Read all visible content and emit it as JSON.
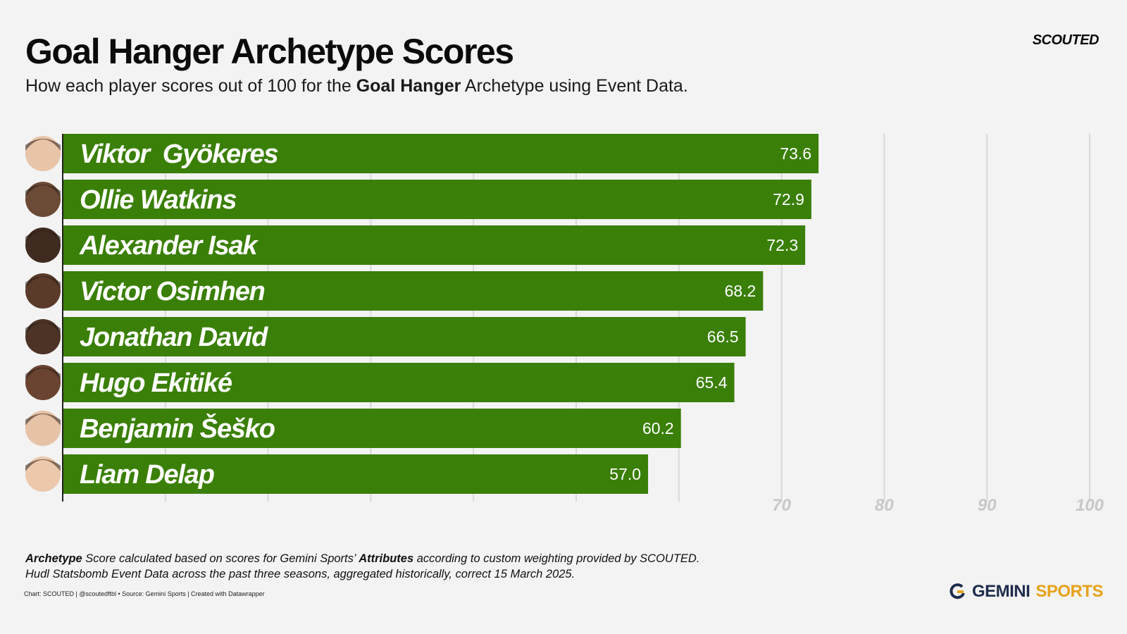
{
  "header": {
    "title": "Goal Hanger Archetype Scores",
    "subtitle_pre": "How each player scores out of 100 for the ",
    "subtitle_bold": "Goal Hanger",
    "subtitle_post": " Archetype using Event Data.",
    "brand": "SCOUTED"
  },
  "colors": {
    "bar": "#3a7f07",
    "grid": "#d9d9d9",
    "tick": "#c8c8c8",
    "axis": "#222222"
  },
  "chart_data": {
    "type": "bar",
    "orientation": "horizontal",
    "categories": [
      "Viktor  Gyökeres",
      "Ollie Watkins",
      "Alexander Isak",
      "Victor Osimhen",
      "Jonathan David",
      "Hugo Ekitiké",
      "Benjamin Šeško",
      "Liam Delap"
    ],
    "values": [
      73.6,
      72.9,
      72.3,
      68.2,
      66.5,
      65.4,
      60.2,
      57.0
    ],
    "value_labels": [
      "73.6",
      "72.9",
      "72.3",
      "68.2",
      "66.5",
      "65.4",
      "60.2",
      "57.0"
    ],
    "xlim": [
      0,
      100
    ],
    "gridlines": [
      10,
      20,
      30,
      40,
      50,
      60,
      70,
      80,
      90,
      100
    ],
    "tick_labels": [
      "70",
      "80",
      "90",
      "100"
    ],
    "tick_values": [
      70,
      80,
      90,
      100
    ]
  },
  "footer": {
    "note_line1_b1": "Archetype",
    "note_line1_t1": " Score calculated based on scores for Gemini Sports’ ",
    "note_line1_b2": "Attributes",
    "note_line1_t2": " according to custom weighting provided by SCOUTED.",
    "note_line2": "Hudl Statsbomb Event Data across the past three seasons, aggregated historically, correct 15 March 2025.",
    "credit": "Chart: SCOUTED | @scoutedftbl • Source: Gemini Sports | Created with Datawrapper",
    "partner_1": "GEMINI",
    "partner_2": "SPORTS"
  }
}
